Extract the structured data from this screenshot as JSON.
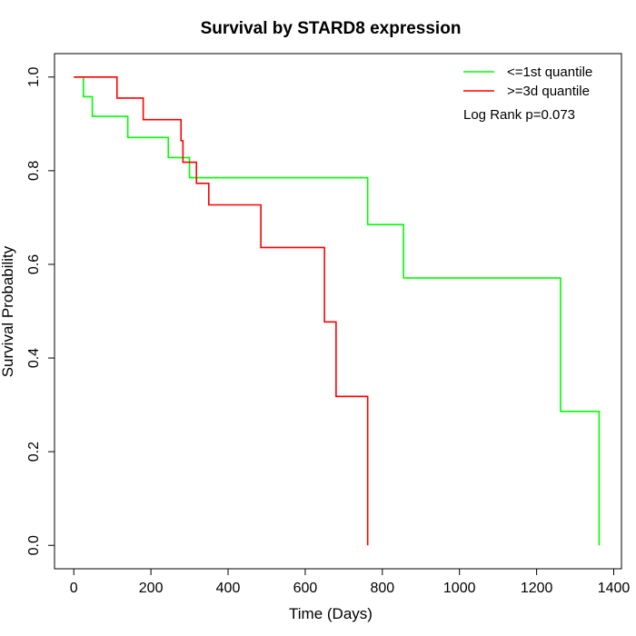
{
  "chart_data": {
    "type": "line",
    "title": "Survival by STARD8 expression",
    "xlabel": "Time (Days)",
    "ylabel": "Survival Probability",
    "xlim": [
      -50,
      1420
    ],
    "ylim": [
      -0.05,
      1.05
    ],
    "x_ticks": [
      0,
      200,
      400,
      600,
      800,
      1000,
      1200,
      1400
    ],
    "x_tick_labels": [
      "0",
      "200",
      "400",
      "600",
      "800",
      "1000",
      "1200",
      "1400"
    ],
    "y_ticks": [
      0.0,
      0.2,
      0.4,
      0.6,
      0.8,
      1.0
    ],
    "y_tick_labels": [
      "0.0",
      "0.2",
      "0.4",
      "0.6",
      "0.8",
      "1.0"
    ],
    "grid": false,
    "legend_position": "top-right",
    "annotation": "Log Rank p=0.073",
    "series": [
      {
        "name": "<=1st quantile",
        "color": "#00ff00",
        "step_points": [
          [
            0,
            1.0
          ],
          [
            25,
            0.958
          ],
          [
            48,
            0.916
          ],
          [
            140,
            0.871
          ],
          [
            245,
            0.828
          ],
          [
            300,
            0.785
          ],
          [
            762,
            0.685
          ],
          [
            855,
            0.571
          ],
          [
            1262,
            0.286
          ],
          [
            1362,
            0.0
          ]
        ]
      },
      {
        "name": ">=3d quantile",
        "color": "#ff0000",
        "step_points": [
          [
            0,
            1.0
          ],
          [
            112,
            0.955
          ],
          [
            180,
            0.909
          ],
          [
            278,
            0.864
          ],
          [
            283,
            0.818
          ],
          [
            318,
            0.773
          ],
          [
            350,
            0.727
          ],
          [
            485,
            0.636
          ],
          [
            650,
            0.477
          ],
          [
            680,
            0.318
          ],
          [
            762,
            0.0
          ]
        ]
      }
    ]
  }
}
